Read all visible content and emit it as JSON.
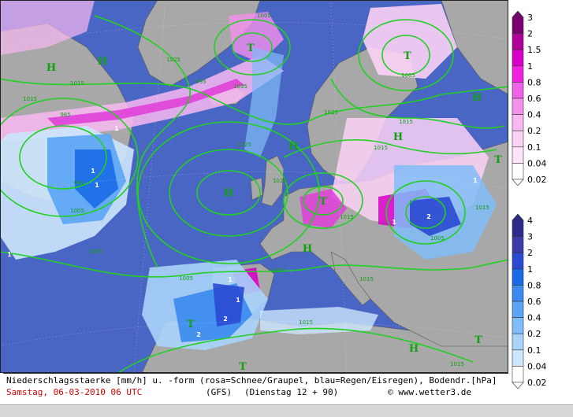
{
  "caption": {
    "line1": "Niederschlagsstaerke [mm/h] u. -form (rosa=Schnee/Graupel, blau=Regen/Eisregen), Bodendr.[hPa]",
    "date": "Samstag, 06-03-2010  06 UTC",
    "model": "(GFS)",
    "run": "(Dienstag 12 + 90)",
    "copyright": "© www.wetter3.de"
  },
  "legend_snow": {
    "labels": [
      "3",
      "2",
      "1.5",
      "1",
      "0.8",
      "0.6",
      "0.4",
      "0.2",
      "0.1",
      "0.04",
      "0.02"
    ],
    "colors": [
      "#7a0070",
      "#b0009a",
      "#d800c8",
      "#f020e0",
      "#f060e8",
      "#f490ec",
      "#f8b8f2",
      "#fbd2f6",
      "#fde4fa",
      "#ffffff"
    ]
  },
  "legend_rain": {
    "labels": [
      "4",
      "3",
      "2",
      "1",
      "0.8",
      "0.6",
      "0.4",
      "0.2",
      "0.1",
      "0.04",
      "0.02"
    ],
    "colors": [
      "#2a2a8a",
      "#3a3aa8",
      "#2a4ad0",
      "#1a6ae8",
      "#3a8af0",
      "#5aa4f4",
      "#80bcf8",
      "#a8d4fa",
      "#cce6fc",
      "#ffffff"
    ]
  },
  "map": {
    "highs": [
      "H",
      "H",
      "H",
      "H",
      "H",
      "H",
      "H",
      "H"
    ],
    "lows": [
      "T",
      "T",
      "T",
      "T",
      "T",
      "T",
      "T"
    ],
    "isobar_labels": [
      "1005",
      "1015",
      "1025",
      "1035",
      "1025",
      "995",
      "1015",
      "1005",
      "1015",
      "1025",
      "1015",
      "1005",
      "1015",
      "1005",
      "1015",
      "1025",
      "1015",
      "1005",
      "1005",
      "1015",
      "1025",
      "995",
      "985",
      "1015"
    ],
    "precip_labels": [
      "1",
      "1",
      "1",
      "2",
      "1",
      "1",
      "2",
      "1",
      "1",
      "2",
      "1"
    ],
    "colors": {
      "sea": "#4a66c4",
      "land": "#a8a8a8",
      "isobar": "#20d020",
      "high_low_text": "#10a010"
    }
  }
}
